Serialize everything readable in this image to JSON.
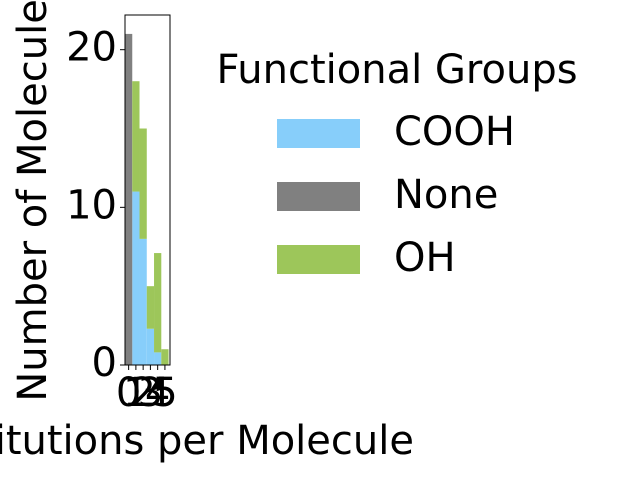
{
  "chart_data": {
    "type": "bar",
    "stacked": true,
    "x": [
      0,
      1,
      2,
      3,
      4,
      5
    ],
    "series": [
      {
        "name": "COOH",
        "color": "#87cefa",
        "values": [
          0,
          11,
          8,
          2.3,
          0.8,
          0
        ]
      },
      {
        "name": "None",
        "color": "#808080",
        "values": [
          21,
          0,
          0,
          0,
          0,
          0
        ]
      },
      {
        "name": "OH",
        "color": "#9dc65a",
        "values": [
          0,
          7,
          7,
          2.7,
          6.3,
          1
        ]
      }
    ],
    "xlabel": "Substitutions per Molecule",
    "ylabel": "Number of Molecules",
    "xlim": [
      -0.5,
      5.7
    ],
    "xticks": [
      0,
      1,
      2,
      3,
      4,
      5
    ],
    "ylim": [
      0,
      22.2
    ],
    "yticks": [
      0,
      10,
      20
    ],
    "legend_title": "Functional Groups",
    "legend_position": "right"
  }
}
